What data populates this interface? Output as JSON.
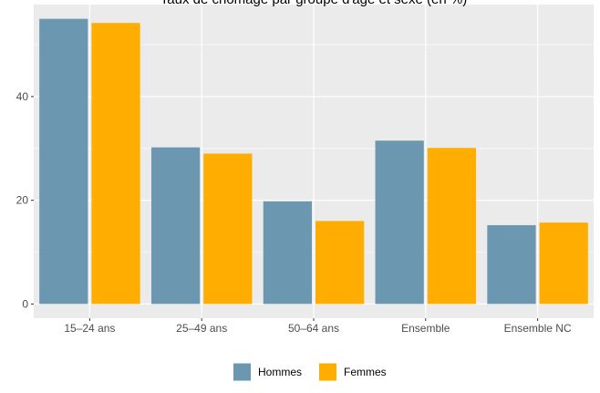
{
  "chart_data": {
    "type": "bar",
    "title": "Taux de chômage par groupe d'âge et sexe (en %)",
    "xlabel": "",
    "ylabel": "",
    "categories": [
      "15–24 ans",
      "25–49 ans",
      "50–64 ans",
      "Ensemble",
      "Ensemble NC"
    ],
    "series": [
      {
        "name": "Hommes",
        "color": "#6b97b0",
        "values": [
          55.0,
          30.2,
          19.8,
          31.5,
          15.2
        ]
      },
      {
        "name": "Femmes",
        "color": "#ffad00",
        "values": [
          54.2,
          29.0,
          16.0,
          30.1,
          15.7
        ]
      }
    ],
    "yticks": [
      0,
      20,
      40
    ],
    "ylim": [
      -2.75,
      57.75
    ],
    "grid": true,
    "legend_position": "bottom",
    "panel_background": "#ebebeb",
    "grid_color": "#ffffff"
  }
}
